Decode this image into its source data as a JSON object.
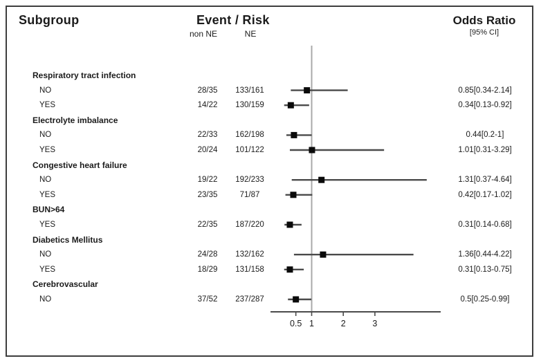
{
  "header": {
    "subgroup": "Subgroup",
    "event_risk": "Event / Risk",
    "col_non_ne": "non NE",
    "col_ne": "NE",
    "odds_ratio": "Odds Ratio",
    "ci": "[95% CI]"
  },
  "colors": {
    "text": "#1b1b1b",
    "ci_line": "#4a4a4a",
    "marker": "#0a0a0a",
    "axis": "#4a4a4a",
    "reference_line": "#a8a8a8",
    "border": "#3d3d3d"
  },
  "chart_data": {
    "type": "forest-plot",
    "title": "Odds Ratio [95% CI] by Subgroup",
    "x_scale": "linear",
    "xticks": [
      0.5,
      1,
      2,
      3
    ],
    "x_axis_range": [
      0.18,
      5.1
    ],
    "reference_value": 1,
    "columns": [
      "Subgroup",
      "Event / Risk non NE",
      "Event / Risk NE",
      "Odds Ratio [95% CI]"
    ],
    "rows": [
      {
        "label": "Respiratory tract infection",
        "type": "group"
      },
      {
        "label": "NO",
        "type": "data",
        "non_ne": "28/35",
        "ne": "133/161",
        "or": 0.85,
        "lo": 0.34,
        "hi": 2.14,
        "or_text": "0.85[0.34-2.14]"
      },
      {
        "label": "YES",
        "type": "data",
        "non_ne": "14/22",
        "ne": "130/159",
        "or": 0.34,
        "lo": 0.13,
        "hi": 0.92,
        "or_text": "0.34[0.13-0.92]"
      },
      {
        "label": "Electrolyte imbalance",
        "type": "group"
      },
      {
        "label": "NO",
        "type": "data",
        "non_ne": "22/33",
        "ne": "162/198",
        "or": 0.44,
        "lo": 0.2,
        "hi": 1,
        "or_text": "0.44[0.2-1]"
      },
      {
        "label": "YES",
        "type": "data",
        "non_ne": "20/24",
        "ne": "101/122",
        "or": 1.01,
        "lo": 0.31,
        "hi": 3.29,
        "or_text": "1.01[0.31-3.29]"
      },
      {
        "label": "Congestive heart failure",
        "type": "group"
      },
      {
        "label": "NO",
        "type": "data",
        "non_ne": "19/22",
        "ne": "192/233",
        "or": 1.31,
        "lo": 0.37,
        "hi": 4.64,
        "or_text": "1.31[0.37-4.64]"
      },
      {
        "label": "YES",
        "type": "data",
        "non_ne": "23/35",
        "ne": "71/87",
        "or": 0.42,
        "lo": 0.17,
        "hi": 1.02,
        "or_text": "0.42[0.17-1.02]"
      },
      {
        "label": "BUN>64",
        "type": "group"
      },
      {
        "label": "YES",
        "type": "data",
        "non_ne": "22/35",
        "ne": "187/220",
        "or": 0.31,
        "lo": 0.14,
        "hi": 0.68,
        "or_text": "0.31[0.14-0.68]"
      },
      {
        "label": "Diabetics Mellitus",
        "type": "group"
      },
      {
        "label": "NO",
        "type": "data",
        "non_ne": "24/28",
        "ne": "132/162",
        "or": 1.36,
        "lo": 0.44,
        "hi": 4.22,
        "or_text": "1.36[0.44-4.22]"
      },
      {
        "label": "YES",
        "type": "data",
        "non_ne": "18/29",
        "ne": "131/158",
        "or": 0.31,
        "lo": 0.13,
        "hi": 0.75,
        "or_text": "0.31[0.13-0.75]"
      },
      {
        "label": "Cerebrovascular",
        "type": "group"
      },
      {
        "label": "NO",
        "type": "data",
        "non_ne": "37/52",
        "ne": "237/287",
        "or": 0.5,
        "lo": 0.25,
        "hi": 0.99,
        "or_text": "0.5[0.25-0.99]"
      }
    ]
  }
}
